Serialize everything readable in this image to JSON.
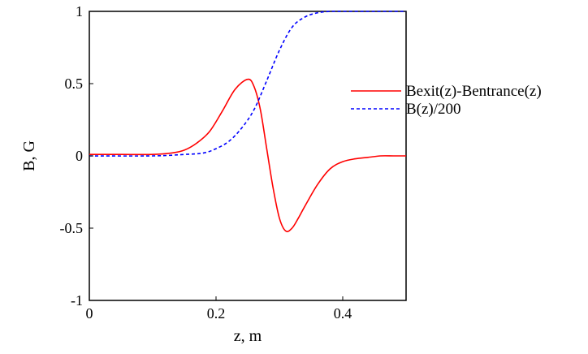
{
  "chart_data": {
    "type": "line",
    "title": "",
    "xlabel": "z, m",
    "ylabel": "B, G",
    "xlim": [
      0,
      0.5
    ],
    "ylim": [
      -1,
      1
    ],
    "grid": false,
    "legend_position": "right",
    "x_ticks": [
      {
        "value": 0,
        "label": "0"
      },
      {
        "value": 0.2,
        "label": "0.2"
      },
      {
        "value": 0.4,
        "label": "0.4"
      }
    ],
    "y_ticks": [
      {
        "value": 1,
        "label": "1"
      },
      {
        "value": 0.5,
        "label": "0.5"
      },
      {
        "value": 0,
        "label": "0"
      },
      {
        "value": -0.5,
        "label": "-0.5"
      },
      {
        "value": -1,
        "label": "-1"
      }
    ],
    "series": [
      {
        "name": "Bexit(z)-Bentrance(z)",
        "color": "#ff0000",
        "style": "solid",
        "x": [
          0,
          0.05,
          0.1,
          0.13,
          0.15,
          0.17,
          0.19,
          0.21,
          0.23,
          0.25,
          0.26,
          0.27,
          0.28,
          0.29,
          0.3,
          0.31,
          0.32,
          0.33,
          0.34,
          0.36,
          0.38,
          0.4,
          0.42,
          0.44,
          0.46,
          0.48,
          0.5
        ],
        "y": [
          0.01,
          0.01,
          0.01,
          0.02,
          0.04,
          0.09,
          0.17,
          0.31,
          0.46,
          0.53,
          0.48,
          0.32,
          0.05,
          -0.22,
          -0.43,
          -0.52,
          -0.5,
          -0.43,
          -0.35,
          -0.2,
          -0.09,
          -0.04,
          -0.02,
          -0.01,
          0,
          0,
          0
        ]
      },
      {
        "name": "B(z)/200",
        "color": "#0000ff",
        "style": "dashed",
        "x": [
          0,
          0.1,
          0.15,
          0.18,
          0.2,
          0.22,
          0.24,
          0.26,
          0.28,
          0.3,
          0.32,
          0.34,
          0.36,
          0.38,
          0.4,
          0.42,
          0.44,
          0.5
        ],
        "y": [
          0,
          0,
          0.01,
          0.02,
          0.05,
          0.1,
          0.19,
          0.32,
          0.52,
          0.73,
          0.89,
          0.96,
          0.99,
          1.0,
          1.0,
          1.0,
          1.0,
          1.0
        ]
      }
    ]
  }
}
